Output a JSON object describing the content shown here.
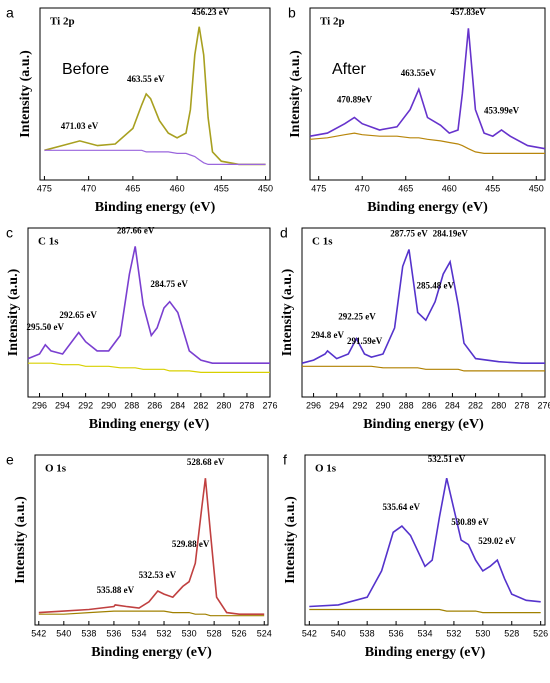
{
  "chart_data": [
    {
      "type": "line",
      "panel_label": "a",
      "title": "Ti 2p",
      "note": "Before",
      "xlabel": "Binding energy (eV)",
      "ylabel": "Intensity (a.u.)",
      "xlim": [
        475.5,
        449.5
      ],
      "xticks": [
        475,
        470,
        465,
        460,
        455,
        450
      ],
      "ylim": [
        0,
        110
      ],
      "x": [
        475,
        473,
        471,
        469,
        467,
        465,
        464,
        463.5,
        463,
        462,
        461,
        460,
        459,
        458.5,
        458,
        457.5,
        457,
        456.5,
        456,
        455,
        453,
        450
      ],
      "series": [
        {
          "color": "#a8a020",
          "values": [
            19,
            22,
            25,
            22,
            23,
            33,
            48,
            55,
            52,
            38,
            30,
            27,
            30,
            45,
            80,
            98,
            80,
            40,
            18,
            12,
            10,
            10
          ]
        },
        {
          "color": "#9a66dd",
          "values": [
            19,
            19,
            19,
            19,
            19,
            19,
            19,
            18,
            18,
            18,
            18,
            17,
            17,
            16,
            15,
            13,
            11,
            10,
            10,
            10,
            10,
            10
          ]
        }
      ],
      "annotations": [
        {
          "text": "471.03 eV",
          "x": 471.03,
          "y": 30
        },
        {
          "text": "463.55 eV",
          "x": 463.55,
          "y": 60
        },
        {
          "text": "456.23 eV",
          "x": 456.23,
          "y": 103
        }
      ]
    },
    {
      "type": "line",
      "panel_label": "b",
      "title": "Ti 2p",
      "note": "After",
      "xlabel": "Binding energy (eV)",
      "ylabel": "Intensity (a.u.)",
      "xlim": [
        476,
        449
      ],
      "xticks": [
        475,
        470,
        465,
        460,
        455,
        450
      ],
      "ylim": [
        0,
        110
      ],
      "x": [
        476,
        474,
        472,
        470.9,
        470,
        468,
        466,
        464.5,
        463.5,
        462.5,
        461,
        460,
        459,
        458.5,
        457.8,
        457,
        456,
        455,
        454,
        453,
        451,
        449
      ],
      "series": [
        {
          "color": "#6633cc",
          "values": [
            28,
            30,
            36,
            40,
            36,
            32,
            34,
            45,
            58,
            40,
            35,
            30,
            32,
            55,
            97,
            45,
            30,
            28,
            32,
            28,
            22,
            20
          ]
        },
        {
          "color": "#b8860b",
          "values": [
            26,
            27,
            29,
            30,
            29,
            28,
            28,
            27,
            27,
            26,
            25,
            24,
            23,
            22,
            20,
            18,
            17,
            17,
            17,
            17,
            17,
            17
          ]
        }
      ],
      "annotations": [
        {
          "text": "470.89eV",
          "x": 470.89,
          "y": 47
        },
        {
          "text": "463.55eV",
          "x": 463.55,
          "y": 64
        },
        {
          "text": "457.83eV",
          "x": 457.83,
          "y": 103
        },
        {
          "text": "453.99eV",
          "x": 453.99,
          "y": 40
        }
      ]
    },
    {
      "type": "line",
      "panel_label": "c",
      "title": "C 1s",
      "xlabel": "Binding energy (eV)",
      "ylabel": "Intensity (a.u.)",
      "xlim": [
        297,
        276
      ],
      "xticks": [
        296,
        294,
        292,
        290,
        288,
        286,
        284,
        282,
        280,
        278,
        276
      ],
      "ylim": [
        0,
        110
      ],
      "x": [
        297,
        296,
        295.5,
        295,
        294,
        293,
        292.6,
        292,
        291,
        290,
        289,
        288.2,
        287.7,
        287,
        286.3,
        285.8,
        285.2,
        284.7,
        284,
        283,
        282,
        281,
        280,
        278,
        276
      ],
      "series": [
        {
          "color": "#7a3fd0",
          "values": [
            25,
            28,
            34,
            30,
            28,
            38,
            42,
            36,
            30,
            30,
            40,
            80,
            98,
            60,
            40,
            45,
            58,
            62,
            55,
            30,
            24,
            22,
            22,
            22,
            22
          ]
        },
        {
          "color": "#d8d000",
          "values": [
            22,
            22,
            22,
            22,
            21,
            21,
            21,
            20,
            20,
            20,
            19,
            19,
            19,
            18,
            18,
            18,
            18,
            17,
            17,
            17,
            16,
            16,
            16,
            16,
            16
          ]
        }
      ],
      "annotations": [
        {
          "text": "295.50 eV",
          "x": 295.5,
          "y": 41
        },
        {
          "text": "292.65 eV",
          "x": 292.65,
          "y": 49
        },
        {
          "text": "287.66 eV",
          "x": 287.66,
          "y": 104
        },
        {
          "text": "284.75 eV",
          "x": 284.75,
          "y": 69
        }
      ]
    },
    {
      "type": "line",
      "panel_label": "d",
      "title": "C 1s",
      "xlabel": "Binding energy (eV)",
      "ylabel": "Intensity (a.u.)",
      "xlim": [
        297,
        276
      ],
      "xticks": [
        296,
        294,
        292,
        290,
        288,
        286,
        284,
        282,
        280,
        278,
        276
      ],
      "ylim": [
        0,
        110
      ],
      "x": [
        297,
        296,
        295,
        294.8,
        294,
        293,
        292.3,
        291.6,
        291,
        290,
        289,
        288.3,
        287.75,
        287,
        286.3,
        285.5,
        284.8,
        284.2,
        283.5,
        283,
        282,
        280,
        278,
        276
      ],
      "series": [
        {
          "color": "#5533cc",
          "values": [
            22,
            24,
            28,
            30,
            25,
            28,
            38,
            28,
            26,
            28,
            45,
            85,
            96,
            55,
            50,
            62,
            80,
            88,
            60,
            35,
            25,
            23,
            22,
            22
          ]
        },
        {
          "color": "#b08000",
          "values": [
            20,
            20,
            20,
            20,
            20,
            20,
            20,
            20,
            20,
            19,
            19,
            19,
            19,
            19,
            18,
            18,
            18,
            18,
            18,
            17,
            17,
            17,
            17,
            17
          ]
        }
      ],
      "annotations": [
        {
          "text": "294.8 eV",
          "x": 294.8,
          "y": 36
        },
        {
          "text": "292.25 eV",
          "x": 292.25,
          "y": 48
        },
        {
          "text": "291.59eV",
          "x": 291.59,
          "y": 32
        },
        {
          "text": "287.75 eV",
          "x": 287.75,
          "y": 102
        },
        {
          "text": "285.48 eV",
          "x": 285.48,
          "y": 68
        },
        {
          "text": "284.19eV",
          "x": 284.19,
          "y": 102
        }
      ]
    },
    {
      "type": "line",
      "panel_label": "e",
      "title": "O 1s",
      "xlabel": "Binding energy (eV)",
      "ylabel": "Intensity (a.u.)",
      "xlim": [
        542.3,
        523.7
      ],
      "xticks": [
        542,
        540,
        538,
        536,
        534,
        532,
        530,
        528,
        526,
        524
      ],
      "ylim": [
        0,
        110
      ],
      "x": [
        542,
        540,
        538,
        536,
        535.9,
        535,
        534,
        533.2,
        532.5,
        532,
        531.3,
        530.5,
        530,
        529.5,
        529,
        528.7,
        528.3,
        527.8,
        527,
        526,
        524
      ],
      "series": [
        {
          "color": "#c04040",
          "values": [
            8,
            9,
            10,
            12,
            13,
            12,
            11,
            15,
            22,
            20,
            18,
            25,
            28,
            40,
            75,
            95,
            60,
            18,
            8,
            7,
            7
          ]
        },
        {
          "color": "#a08000",
          "values": [
            7,
            7,
            8,
            9,
            9,
            9,
            9,
            9,
            9,
            9,
            8,
            8,
            8,
            7,
            7,
            7,
            6,
            6,
            6,
            6,
            6
          ]
        }
      ],
      "annotations": [
        {
          "text": "535.88 eV",
          "x": 535.88,
          "y": 18
        },
        {
          "text": "532.53 eV",
          "x": 532.53,
          "y": 28
        },
        {
          "text": "529.88 eV",
          "x": 529.88,
          "y": 48
        },
        {
          "text": "528.68 eV",
          "x": 528.68,
          "y": 101
        }
      ]
    },
    {
      "type": "line",
      "panel_label": "f",
      "title": "O 1s",
      "xlabel": "Binding energy (eV)",
      "ylabel": "Intensity (a.u.)",
      "xlim": [
        542.3,
        525.7
      ],
      "xticks": [
        542,
        540,
        538,
        536,
        534,
        532,
        530,
        528,
        526
      ],
      "ylim": [
        0,
        110
      ],
      "x": [
        542,
        540,
        538,
        537,
        536.2,
        535.6,
        535,
        534,
        533.5,
        533,
        532.5,
        532,
        531.5,
        531,
        530.5,
        530,
        529.5,
        529,
        528.5,
        528,
        527,
        526
      ],
      "series": [
        {
          "color": "#5533cc",
          "values": [
            12,
            13,
            18,
            35,
            60,
            64,
            58,
            38,
            42,
            70,
            95,
            75,
            55,
            52,
            42,
            35,
            38,
            42,
            30,
            20,
            16,
            15
          ]
        },
        {
          "color": "#a08000",
          "values": [
            10,
            10,
            10,
            10,
            10,
            10,
            10,
            10,
            10,
            10,
            9,
            9,
            9,
            9,
            9,
            8,
            8,
            8,
            8,
            8,
            8,
            8
          ]
        }
      ],
      "annotations": [
        {
          "text": "535.64 eV",
          "x": 535.64,
          "y": 72
        },
        {
          "text": "532.51 eV",
          "x": 532.51,
          "y": 103
        },
        {
          "text": "530.89 eV",
          "x": 530.89,
          "y": 62
        },
        {
          "text": "529.02 eV",
          "x": 529.02,
          "y": 50
        }
      ]
    }
  ]
}
